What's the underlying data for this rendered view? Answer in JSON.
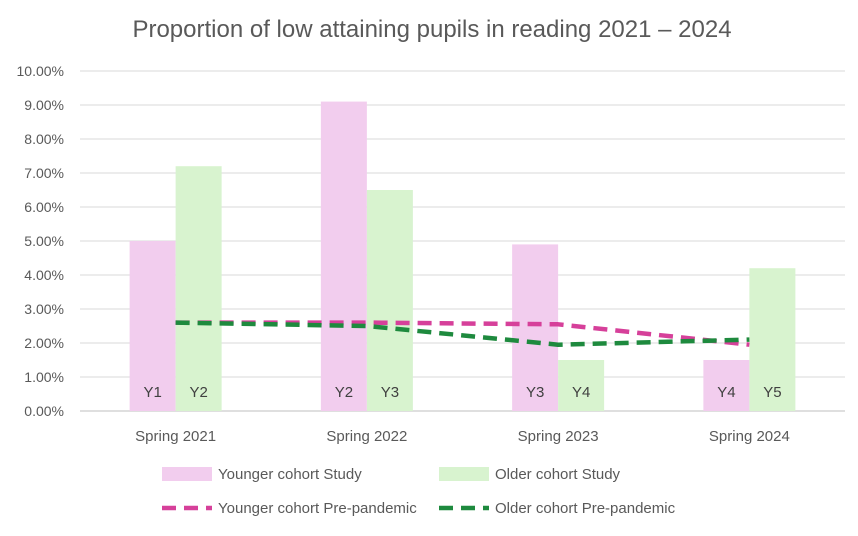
{
  "chart_data": {
    "type": "bar",
    "title": "Proportion of low attaining pupils in reading 2021 – 2024",
    "categories": [
      "Spring 2021",
      "Spring 2022",
      "Spring 2023",
      "Spring 2024"
    ],
    "ylim": [
      0,
      10
    ],
    "yticks": [
      "0.00%",
      "1.00%",
      "2.00%",
      "3.00%",
      "4.00%",
      "5.00%",
      "6.00%",
      "7.00%",
      "8.00%",
      "9.00%",
      "10.00%"
    ],
    "grid": true,
    "legend_position": "bottom",
    "series": [
      {
        "name": "Younger cohort Study",
        "kind": "bar",
        "color": "#f2cdee",
        "values": [
          5.0,
          9.1,
          4.9,
          1.5
        ],
        "bar_labels": [
          "Y1",
          "Y2",
          "Y3",
          "Y4"
        ]
      },
      {
        "name": "Older cohort Study",
        "kind": "bar",
        "color": "#d8f3cf",
        "values": [
          7.2,
          6.5,
          1.5,
          4.2
        ],
        "bar_labels": [
          "Y2",
          "Y3",
          "Y4",
          "Y5"
        ]
      },
      {
        "name": "Younger cohort Pre-pandemic",
        "kind": "dashed-line",
        "color": "#d6409a",
        "values": [
          2.6,
          2.6,
          2.55,
          1.95
        ]
      },
      {
        "name": "Older cohort Pre-pandemic",
        "kind": "dashed-line",
        "color": "#1e8a3e",
        "values": [
          2.6,
          2.5,
          1.95,
          2.1
        ]
      }
    ]
  }
}
